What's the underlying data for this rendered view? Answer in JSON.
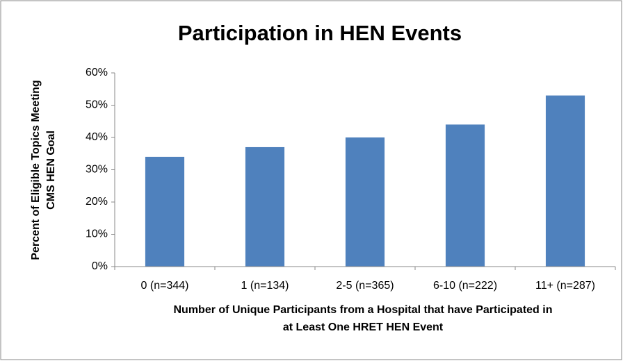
{
  "chart_data": {
    "type": "bar",
    "title": "Participation in HEN Events",
    "ylabel": [
      "Percent of Eligible Topics Meeting",
      "CMS HEN Goal"
    ],
    "xlabel": [
      "Number of Unique Participants from a Hospital that have Participated in",
      "at Least One HRET HEN Event"
    ],
    "categories": [
      "0 (n=344)",
      "1 (n=134)",
      "2-5 (n=365)",
      "6-10 (n=222)",
      "11+ (n=287)"
    ],
    "values": [
      34,
      37,
      40,
      44,
      53
    ],
    "color": "#4f81bd",
    "ylim": [
      0,
      60
    ],
    "yticks": [
      {
        "value": 0,
        "label": "0%"
      },
      {
        "value": 10,
        "label": "10%"
      },
      {
        "value": 20,
        "label": "20%"
      },
      {
        "value": 30,
        "label": "30%"
      },
      {
        "value": 40,
        "label": "40%"
      },
      {
        "value": 50,
        "label": "50%"
      },
      {
        "value": 60,
        "label": "60%"
      }
    ],
    "grid": false
  }
}
